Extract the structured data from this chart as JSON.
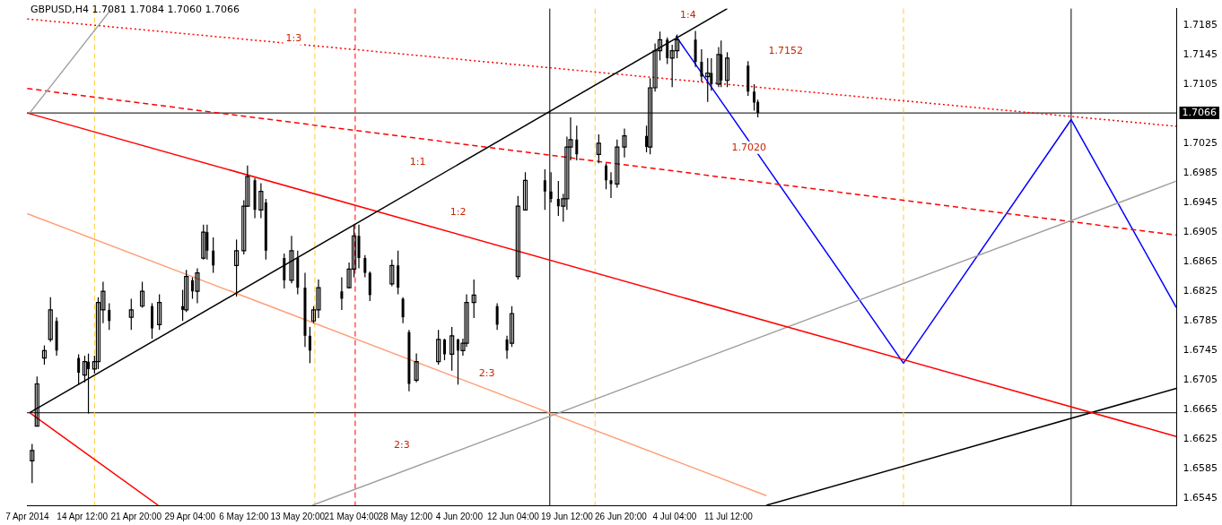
{
  "chart_data": {
    "type": "candlestick",
    "title": "GBPUSD,H4 1.7081 1.7084 1.7060 1.7066",
    "color": "#000000",
    "x": [
      "2014-04-07T16:00",
      "2014-04-08T08:00",
      "2014-04-09T08:00",
      "2014-04-10T04:00",
      "2014-04-11T00:00",
      "2014-04-14T00:00",
      "2014-04-14T20:00",
      "2014-04-15T08:00",
      "2014-04-16T04:00",
      "2014-04-16T16:00",
      "2014-04-17T08:00",
      "2014-04-18T04:00",
      "2014-04-21T04:00",
      "2014-04-22T16:00",
      "2014-04-24T00:00",
      "2014-04-25T00:00",
      "2014-04-28T04:00",
      "2014-04-28T16:00",
      "2014-04-29T12:00",
      "2014-04-30T04:00",
      "2014-05-01T00:00",
      "2014-05-01T12:00",
      "2014-05-02T08:00",
      "2014-05-05T12:00",
      "2014-05-06T12:00",
      "2014-05-07T00:00",
      "2014-05-08T00:00",
      "2014-05-08T20:00",
      "2014-05-09T12:00",
      "2014-05-12T00:00",
      "2014-05-13T00:00",
      "2014-05-13T20:00",
      "2014-05-14T20:00",
      "2014-05-15T12:00",
      "2014-05-16T00:00",
      "2014-05-16T16:00",
      "2014-05-19T20:00",
      "2014-05-20T20:00",
      "2014-05-21T12:00",
      "2014-05-22T04:00",
      "2014-05-23T00:00",
      "2014-05-23T16:00",
      "2014-05-26T16:00",
      "2014-05-27T12:00",
      "2014-05-28T04:00",
      "2014-05-29T00:00",
      "2014-05-30T00:00",
      "2014-06-02T00:00",
      "2014-06-02T20:00",
      "2014-06-03T20:00",
      "2014-06-04T16:00",
      "2014-06-05T08:00",
      "2014-06-05T20:00",
      "2014-06-06T20:00",
      "2014-06-10T00:00",
      "2014-06-11T08:00",
      "2014-06-12T00:00",
      "2014-06-12T20:00",
      "2014-06-13T20:00",
      "2014-06-16T12:00",
      "2014-06-17T08:00",
      "2014-06-18T08:00",
      "2014-06-19T00:00",
      "2014-06-19T12:00",
      "2014-06-20T00:00",
      "2014-06-20T20:00",
      "2014-06-23T20:00",
      "2014-06-24T20:00",
      "2014-06-25T12:00",
      "2014-06-26T08:00",
      "2014-06-27T08:00",
      "2014-06-30T08:00",
      "2014-06-30T20:00",
      "2014-07-01T12:00",
      "2014-07-02T04:00",
      "2014-07-03T04:00",
      "2014-07-03T20:00",
      "2014-07-04T12:00",
      "2014-07-07T00:00",
      "2014-07-07T20:00",
      "2014-07-08T16:00",
      "2014-07-09T04:00",
      "2014-07-10T04:00",
      "2014-07-10T12:00",
      "2014-07-11T08:00",
      "2014-07-14T04:00",
      "2014-07-15T00:00",
      "2014-07-15T12:00"
    ],
    "ohlc": [
      [
        1.6596,
        1.6619,
        1.6566,
        1.661
      ],
      [
        1.6643,
        1.671,
        1.6643,
        1.67
      ],
      [
        1.6735,
        1.6752,
        1.6726,
        1.6745
      ],
      [
        1.676,
        1.6817,
        1.6757,
        1.68
      ],
      [
        1.6785,
        1.679,
        1.6738,
        1.6745
      ],
      [
        1.6735,
        1.674,
        1.6699,
        1.6715
      ],
      [
        1.6712,
        1.6738,
        1.6702,
        1.673
      ],
      [
        1.673,
        1.6741,
        1.666,
        1.672
      ],
      [
        1.672,
        1.6738,
        1.6714,
        1.673
      ],
      [
        1.673,
        1.6817,
        1.672,
        1.681
      ],
      [
        1.68,
        1.6838,
        1.6782,
        1.6825
      ],
      [
        1.68,
        1.6809,
        1.6773,
        1.6785
      ],
      [
        1.679,
        1.6815,
        1.6773,
        1.68
      ],
      [
        1.6805,
        1.6838,
        1.6803,
        1.6825
      ],
      [
        1.6805,
        1.6809,
        1.6761,
        1.6775
      ],
      [
        1.678,
        1.6821,
        1.6773,
        1.681
      ],
      [
        1.6805,
        1.6827,
        1.6785,
        1.68
      ],
      [
        1.68,
        1.6854,
        1.6797,
        1.6845
      ],
      [
        1.684,
        1.6844,
        1.6815,
        1.6825
      ],
      [
        1.6825,
        1.6856,
        1.6809,
        1.685
      ],
      [
        1.687,
        1.6915,
        1.6868,
        1.6905
      ],
      [
        1.6905,
        1.6915,
        1.6868,
        1.688
      ],
      [
        1.688,
        1.6898,
        1.685,
        1.686
      ],
      [
        1.686,
        1.6895,
        1.6818,
        1.688
      ],
      [
        1.688,
        1.6948,
        1.6875,
        1.694
      ],
      [
        1.694,
        1.6995,
        1.6939,
        1.698
      ],
      [
        1.6975,
        1.6978,
        1.6924,
        1.6935
      ],
      [
        1.6935,
        1.6971,
        1.6924,
        1.696
      ],
      [
        1.6945,
        1.695,
        1.6868,
        1.688
      ],
      [
        1.687,
        1.6876,
        1.6829,
        1.684
      ],
      [
        1.684,
        1.69,
        1.6836,
        1.688
      ],
      [
        1.687,
        1.688,
        1.6821,
        1.683
      ],
      [
        1.683,
        1.685,
        1.675,
        1.6765
      ],
      [
        1.6765,
        1.6777,
        1.6728,
        1.6745
      ],
      [
        1.6785,
        1.6805,
        1.6782,
        1.68
      ],
      [
        1.68,
        1.6841,
        1.6789,
        1.683
      ],
      [
        1.6825,
        1.6844,
        1.68,
        1.6815
      ],
      [
        1.683,
        1.6864,
        1.6829,
        1.6855
      ],
      [
        1.6855,
        1.6915,
        1.6844,
        1.69
      ],
      [
        1.69,
        1.6915,
        1.6856,
        1.687
      ],
      [
        1.687,
        1.6874,
        1.6844,
        1.685
      ],
      [
        1.685,
        1.6852,
        1.6812,
        1.682
      ],
      [
        1.6835,
        1.6868,
        1.6832,
        1.686
      ],
      [
        1.686,
        1.688,
        1.6821,
        1.683
      ],
      [
        1.6815,
        1.6817,
        1.6782,
        1.679
      ],
      [
        1.677,
        1.6773,
        1.669,
        1.67
      ],
      [
        1.6705,
        1.6741,
        1.6702,
        1.673
      ],
      [
        1.673,
        1.6773,
        1.6726,
        1.676
      ],
      [
        1.676,
        1.6761,
        1.6732,
        1.674
      ],
      [
        1.674,
        1.6777,
        1.6718,
        1.6765
      ],
      [
        1.676,
        1.6761,
        1.6699,
        1.6745
      ],
      [
        1.6745,
        1.6761,
        1.6738,
        1.6755
      ],
      [
        1.6755,
        1.6821,
        1.675,
        1.681
      ],
      [
        1.681,
        1.6841,
        1.6789,
        1.682
      ],
      [
        1.6805,
        1.6809,
        1.6773,
        1.678
      ],
      [
        1.676,
        1.6765,
        1.6734,
        1.6745
      ],
      [
        1.6755,
        1.6805,
        1.675,
        1.6795
      ],
      [
        1.6845,
        1.6954,
        1.6841,
        1.694
      ],
      [
        1.6935,
        1.6986,
        1.6935,
        1.6975
      ],
      [
        1.6975,
        1.699,
        1.6935,
        1.696
      ],
      [
        1.696,
        1.6986,
        1.6945,
        1.695
      ],
      [
        1.695,
        1.6974,
        1.6927,
        1.694
      ],
      [
        1.694,
        1.6957,
        1.6919,
        1.695
      ],
      [
        1.695,
        1.7034,
        1.6935,
        1.702
      ],
      [
        1.702,
        1.706,
        1.7002,
        1.703
      ],
      [
        1.703,
        1.7049,
        1.7002,
        1.701
      ],
      [
        1.701,
        1.7037,
        1.6998,
        1.7025
      ],
      [
        1.6995,
        1.6998,
        1.6963,
        1.6975
      ],
      [
        1.6975,
        1.6986,
        1.6951,
        1.697
      ],
      [
        1.697,
        1.703,
        1.6965,
        1.702
      ],
      [
        1.702,
        1.7045,
        1.7006,
        1.7035
      ],
      [
        1.7035,
        1.7049,
        1.7013,
        1.702
      ],
      [
        1.702,
        1.7113,
        1.701,
        1.71
      ],
      [
        1.71,
        1.716,
        1.7095,
        1.715
      ],
      [
        1.715,
        1.7176,
        1.7137,
        1.7165
      ],
      [
        1.7165,
        1.7168,
        1.7132,
        1.714
      ],
      [
        1.714,
        1.7158,
        1.7101,
        1.715
      ],
      [
        1.715,
        1.7172,
        1.714,
        1.7165
      ],
      [
        1.7165,
        1.7177,
        1.7128,
        1.7135
      ],
      [
        1.7135,
        1.7152,
        1.7108,
        1.7115
      ],
      [
        1.7115,
        1.714,
        1.7081,
        1.712
      ],
      [
        1.712,
        1.714,
        1.7096,
        1.7105
      ],
      [
        1.7105,
        1.7155,
        1.7101,
        1.7145
      ],
      [
        1.7145,
        1.7164,
        1.7101,
        1.711
      ],
      [
        1.711,
        1.7148,
        1.7101,
        1.714
      ],
      [
        1.713,
        1.7136,
        1.7089,
        1.7095
      ],
      [
        1.7095,
        1.7105,
        1.7069,
        1.708
      ],
      [
        1.7081,
        1.7084,
        1.706,
        1.7066
      ]
    ],
    "series": [
      {
        "type": "line",
        "color": "#000000",
        "x": [
          "2014-04-07T08:00",
          "2014-07-11T08:00"
        ],
        "values": [
          1.6661,
          1.7207
        ]
      },
      {
        "type": "line",
        "color": "#ff0000",
        "x": [
          "2014-04-07T00:00",
          "2014-09-10T12:00"
        ],
        "values": [
          1.7066,
          1.6629
        ]
      },
      {
        "type": "line",
        "color": "#ff0000",
        "x": [
          "2014-04-07T08:00",
          "2014-04-24T20:00"
        ],
        "values": [
          1.6661,
          1.6536
        ]
      },
      {
        "type": "line",
        "color": "#ffa07a",
        "x": [
          "2014-04-07T00:00",
          "2014-07-16T16:00"
        ],
        "values": [
          1.693,
          1.6549
        ]
      },
      {
        "type": "line",
        "color": "#a0a0a0",
        "x": [
          "2014-04-07T08:00",
          "2014-04-18T12:00"
        ],
        "values": [
          1.7066,
          1.7207
        ]
      },
      {
        "type": "line",
        "color": "#a0a0a0",
        "x": [
          "2014-05-15T20:00",
          "2014-09-10T12:00"
        ],
        "values": [
          1.6536,
          1.6974
        ]
      },
      {
        "type": "line",
        "color": "#000000",
        "x": [
          "2014-07-16T16:00",
          "2014-09-10T12:00"
        ],
        "values": [
          1.6536,
          1.6694
        ]
      },
      {
        "type": "line",
        "color": "#ff0000",
        "line_style": "dotted",
        "x": [
          "2014-04-07T00:00",
          "2014-09-10T12:00"
        ],
        "values": [
          1.7193,
          1.7048
        ]
      },
      {
        "type": "line",
        "color": "#ff0000",
        "line_style": "dashed",
        "x": [
          "2014-04-07T00:00",
          "2014-09-10T12:00"
        ],
        "values": [
          1.7099,
          1.6901
        ]
      },
      {
        "type": "line",
        "color": "#0000ff",
        "x": [
          "2014-07-04T08:00",
          "2014-08-04T08:00",
          "2014-08-27T04:00",
          "2014-09-10T12:00"
        ],
        "values": [
          1.717,
          1.6728,
          1.7057,
          1.6803
        ]
      }
    ],
    "xlim": [
      "2014-04-06T23:00",
      "2014-09-10T13:00"
    ],
    "xticks": [
      {
        "value": "2014-04-07T00:00",
        "label": "7 Apr 2014"
      },
      {
        "value": "2014-04-14T12:00",
        "label": "14 Apr 12:00"
      },
      {
        "value": "2014-04-21T20:00",
        "label": "21 Apr 20:00"
      },
      {
        "value": "2014-04-29T04:00",
        "label": "29 Apr 04:00"
      },
      {
        "value": "2014-05-06T12:00",
        "label": "6 May 12:00"
      },
      {
        "value": "2014-05-13T20:00",
        "label": "13 May 20:00"
      },
      {
        "value": "2014-05-21T04:00",
        "label": "21 May 04:00"
      },
      {
        "value": "2014-05-28T12:00",
        "label": "28 May 12:00"
      },
      {
        "value": "2014-06-04T20:00",
        "label": "4 Jun 20:00"
      },
      {
        "value": "2014-06-12T04:00",
        "label": "12 Jun 04:00"
      },
      {
        "value": "2014-06-19T12:00",
        "label": "19 Jun 12:00"
      },
      {
        "value": "2014-06-26T20:00",
        "label": "26 Jun 20:00"
      },
      {
        "value": "2014-07-04T04:00",
        "label": "4 Jul 04:00"
      },
      {
        "value": "2014-07-11T12:00",
        "label": "11 Jul 12:00"
      }
    ],
    "ylim": [
      1.6536,
      1.7207
    ],
    "yticks": [
      1.6545,
      1.6585,
      1.6625,
      1.6665,
      1.6705,
      1.6745,
      1.6785,
      1.6825,
      1.6865,
      1.6905,
      1.6945,
      1.6985,
      1.7025,
      1.7105,
      1.7145,
      1.7185
    ],
    "ref_lines": [
      {
        "axis": "y",
        "value": 1.7066,
        "label": "1.7066",
        "color": "#000000"
      },
      {
        "axis": "y",
        "value": 1.6661,
        "color": "#000000"
      },
      {
        "axis": "x",
        "value": "2014-06-17T04:00",
        "color": "#000000"
      },
      {
        "axis": "x",
        "value": "2014-08-27T04:00",
        "color": "#000000"
      },
      {
        "axis": "x",
        "value": "2014-05-21T16:00",
        "color": "#ff0000",
        "line_style": "dashed"
      },
      {
        "axis": "x",
        "value": "2014-04-16T04:00",
        "color": "#ffcc33",
        "line_style": "dashed"
      },
      {
        "axis": "x",
        "value": "2014-05-16T04:00",
        "color": "#ffcc33",
        "line_style": "dashed"
      },
      {
        "axis": "x",
        "value": "2014-06-23T08:00",
        "color": "#ffcc33",
        "line_style": "dashed"
      },
      {
        "axis": "x",
        "value": "2014-08-04T08:00",
        "color": "#ffcc33",
        "line_style": "dashed"
      }
    ],
    "annotations": [
      "1:3",
      "1:1",
      "1:2",
      "1:4",
      "2:3",
      "2:3",
      "1.7152",
      "1.7020"
    ],
    "grid": false,
    "legend": false,
    "marker": "none"
  }
}
